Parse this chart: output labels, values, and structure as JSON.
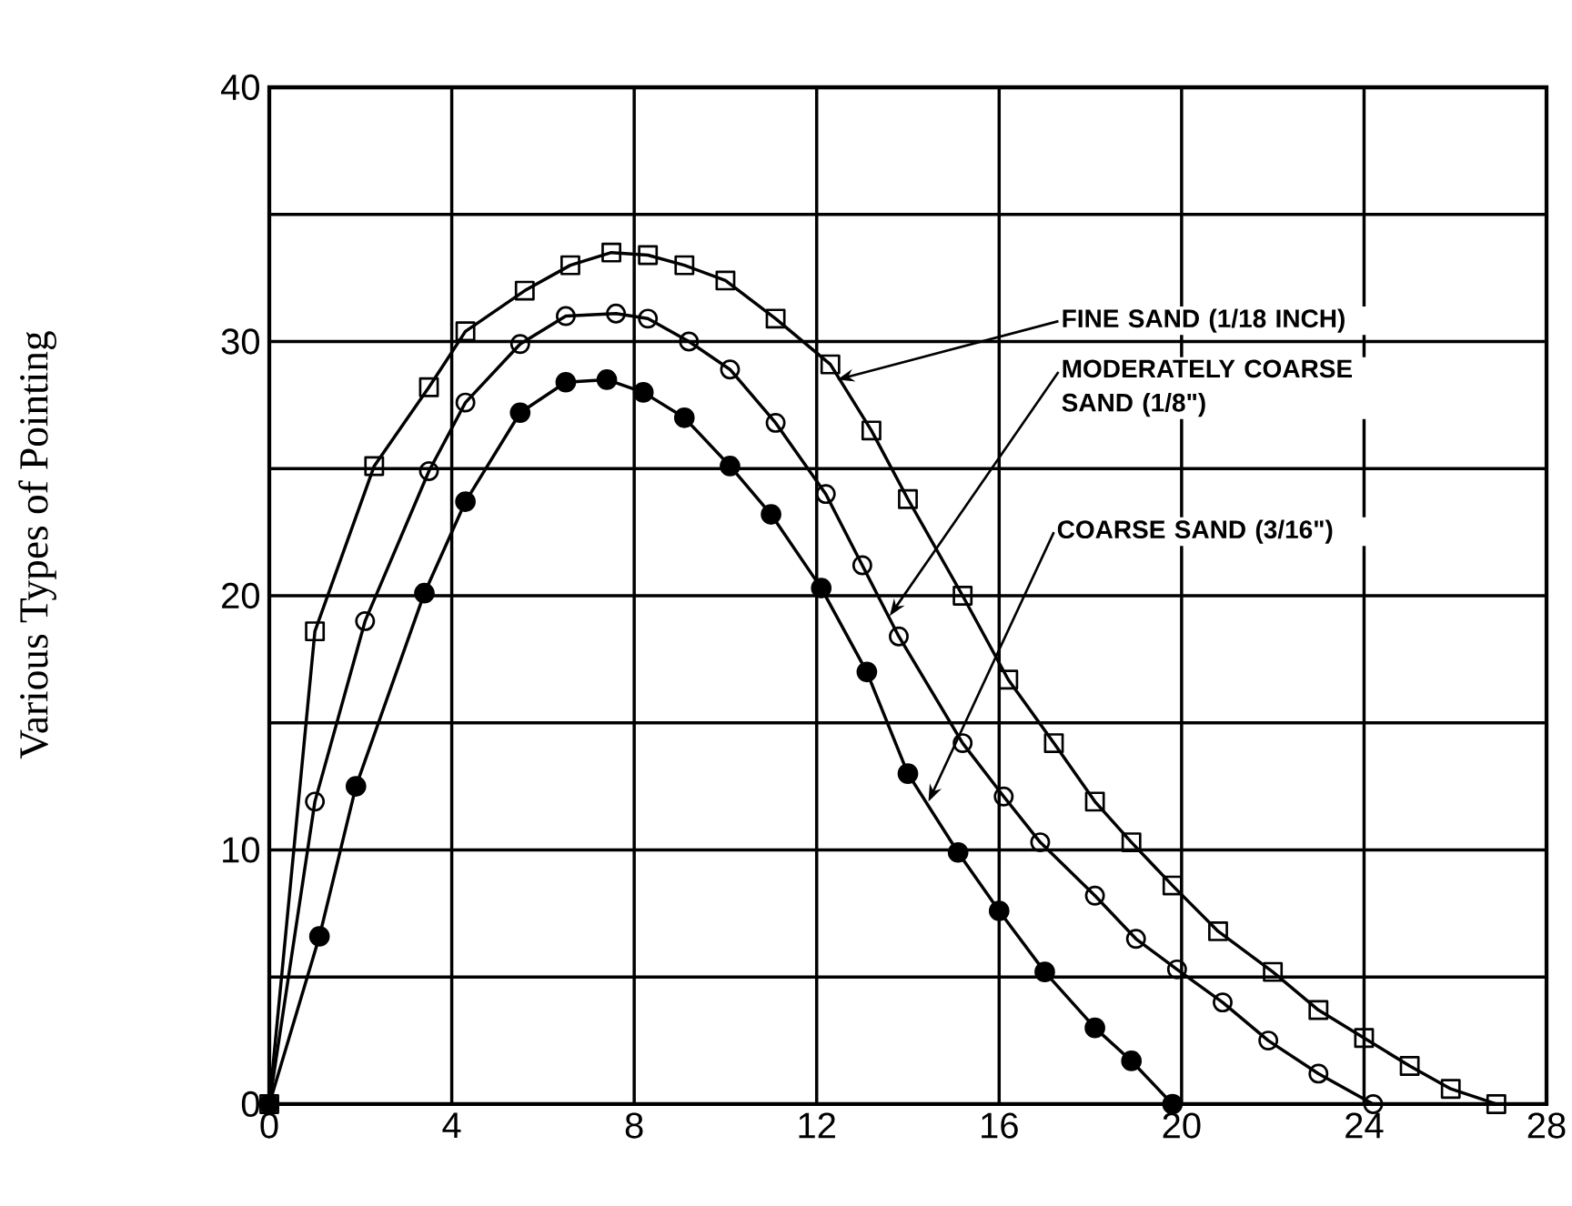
{
  "chart_data": {
    "type": "line",
    "ylabel": "Various Types of Pointing",
    "xlim": [
      0,
      28
    ],
    "ylim": [
      0,
      40
    ],
    "xticks": [
      0,
      4,
      8,
      12,
      16,
      20,
      24,
      28
    ],
    "yticks": [
      0,
      {
        "value": 5,
        "label": null
      },
      10,
      {
        "value": 15,
        "label": null
      },
      20,
      {
        "value": 25,
        "label": null
      },
      30,
      {
        "value": 35,
        "label": null
      },
      40
    ],
    "grid": true,
    "annotations": [
      {
        "text": "FINE SAND (1/18 INCH)",
        "x": 12.45,
        "y": 28.5
      },
      {
        "text": "MODERATELY COARSE SAND (1/8\")",
        "x": 13.6,
        "y": 19.2
      },
      {
        "text": "COARSE SAND (3/16\")",
        "x": 14.45,
        "y": 11.9
      }
    ],
    "series": [
      {
        "color": "#000000",
        "marker": "square",
        "x": [
          0,
          1.0,
          2.3,
          3.5,
          4.3,
          5.6,
          6.6,
          7.5,
          8.3,
          9.1,
          10.0,
          11.1,
          12.3,
          13.2,
          14.0,
          15.2,
          16.2,
          17.2,
          18.1,
          18.9,
          19.8,
          20.8,
          22.0,
          23.0,
          24.0,
          25.0,
          25.9,
          26.9
        ],
        "values": [
          0,
          18.6,
          25.1,
          28.2,
          30.4,
          32.0,
          33.0,
          33.5,
          33.4,
          33.0,
          32.4,
          30.9,
          29.1,
          26.5,
          23.8,
          20.0,
          16.7,
          14.2,
          11.9,
          10.3,
          8.6,
          6.8,
          5.2,
          3.7,
          2.6,
          1.5,
          0.6,
          0
        ]
      },
      {
        "color": "#000000",
        "marker": "circle",
        "x": [
          0,
          1.0,
          2.1,
          3.5,
          4.3,
          5.5,
          6.5,
          7.6,
          8.3,
          9.2,
          10.1,
          11.1,
          12.2,
          13.0,
          13.8,
          15.2,
          16.1,
          16.9,
          18.1,
          19.0,
          19.9,
          20.9,
          21.9,
          23.0,
          24.2
        ],
        "values": [
          0,
          11.9,
          19.0,
          24.9,
          27.6,
          29.9,
          31.0,
          31.1,
          30.9,
          30.0,
          28.9,
          26.8,
          24.0,
          21.2,
          18.4,
          14.2,
          12.1,
          10.3,
          8.2,
          6.5,
          5.3,
          4.0,
          2.5,
          1.2,
          0
        ]
      },
      {
        "color": "#000000",
        "marker": "dot",
        "x": [
          0,
          1.1,
          1.9,
          3.4,
          4.3,
          5.5,
          6.5,
          7.4,
          8.2,
          9.1,
          10.1,
          11.0,
          12.1,
          13.1,
          14.0,
          15.1,
          16.0,
          17.0,
          18.1,
          18.9,
          19.8
        ],
        "values": [
          0,
          6.6,
          12.5,
          20.1,
          23.7,
          27.2,
          28.4,
          28.5,
          28.0,
          27.0,
          25.1,
          23.2,
          20.3,
          17.0,
          13.0,
          9.9,
          7.6,
          5.2,
          3.0,
          1.7,
          0
        ]
      }
    ]
  }
}
